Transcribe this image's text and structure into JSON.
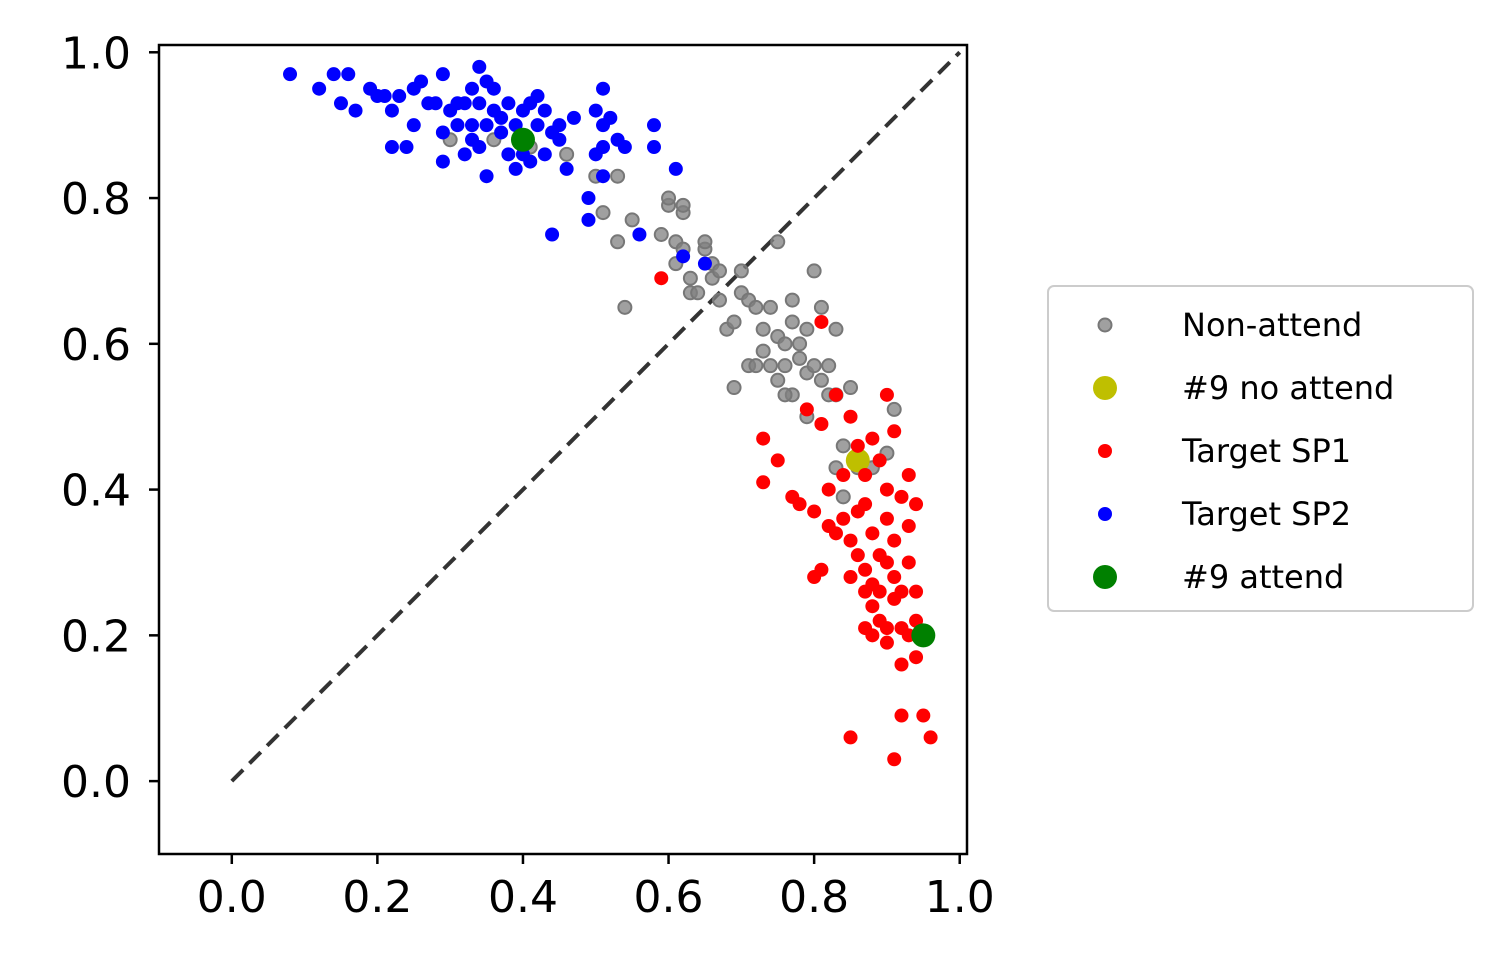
{
  "chart_data": {
    "type": "scatter",
    "title": "",
    "xlabel": "",
    "ylabel": "",
    "xlim": [
      -0.1,
      1.01
    ],
    "ylim": [
      -0.1,
      1.01
    ],
    "xticks": [
      "0.0",
      "0.2",
      "0.4",
      "0.6",
      "0.8",
      "1.0"
    ],
    "yticks": [
      "0.0",
      "0.2",
      "0.4",
      "0.6",
      "0.8",
      "1.0"
    ],
    "xtick_values": [
      0.0,
      0.2,
      0.4,
      0.6,
      0.8,
      1.0
    ],
    "ytick_values": [
      0.0,
      0.2,
      0.4,
      0.6,
      0.8,
      1.0
    ],
    "grid": false,
    "legend_position": "right",
    "reference_line": {
      "style": "dashed",
      "color": "#333333",
      "x": [
        0.0,
        1.0
      ],
      "y": [
        0.0,
        1.0
      ]
    },
    "series": [
      {
        "name": "Non-attend",
        "color": "#808080",
        "marker": "small-circle-translucent",
        "points": [
          [
            0.3,
            0.88
          ],
          [
            0.36,
            0.88
          ],
          [
            0.41,
            0.87
          ],
          [
            0.46,
            0.86
          ],
          [
            0.5,
            0.83
          ],
          [
            0.53,
            0.83
          ],
          [
            0.51,
            0.78
          ],
          [
            0.53,
            0.74
          ],
          [
            0.55,
            0.77
          ],
          [
            0.54,
            0.65
          ],
          [
            0.59,
            0.75
          ],
          [
            0.6,
            0.79
          ],
          [
            0.6,
            0.8
          ],
          [
            0.61,
            0.74
          ],
          [
            0.61,
            0.71
          ],
          [
            0.62,
            0.78
          ],
          [
            0.62,
            0.79
          ],
          [
            0.62,
            0.73
          ],
          [
            0.63,
            0.69
          ],
          [
            0.63,
            0.67
          ],
          [
            0.64,
            0.67
          ],
          [
            0.65,
            0.73
          ],
          [
            0.65,
            0.74
          ],
          [
            0.66,
            0.71
          ],
          [
            0.66,
            0.69
          ],
          [
            0.67,
            0.66
          ],
          [
            0.67,
            0.7
          ],
          [
            0.68,
            0.62
          ],
          [
            0.69,
            0.63
          ],
          [
            0.7,
            0.67
          ],
          [
            0.7,
            0.7
          ],
          [
            0.71,
            0.66
          ],
          [
            0.71,
            0.57
          ],
          [
            0.72,
            0.65
          ],
          [
            0.73,
            0.62
          ],
          [
            0.73,
            0.59
          ],
          [
            0.74,
            0.65
          ],
          [
            0.74,
            0.57
          ],
          [
            0.75,
            0.61
          ],
          [
            0.75,
            0.55
          ],
          [
            0.75,
            0.74
          ],
          [
            0.76,
            0.6
          ],
          [
            0.76,
            0.57
          ],
          [
            0.77,
            0.66
          ],
          [
            0.77,
            0.63
          ],
          [
            0.77,
            0.53
          ],
          [
            0.78,
            0.58
          ],
          [
            0.78,
            0.6
          ],
          [
            0.79,
            0.56
          ],
          [
            0.79,
            0.62
          ],
          [
            0.79,
            0.5
          ],
          [
            0.8,
            0.57
          ],
          [
            0.8,
            0.7
          ],
          [
            0.81,
            0.65
          ],
          [
            0.81,
            0.55
          ],
          [
            0.82,
            0.57
          ],
          [
            0.82,
            0.53
          ],
          [
            0.83,
            0.53
          ],
          [
            0.83,
            0.62
          ],
          [
            0.84,
            0.46
          ],
          [
            0.85,
            0.54
          ],
          [
            0.83,
            0.43
          ],
          [
            0.84,
            0.39
          ],
          [
            0.86,
            0.43
          ],
          [
            0.88,
            0.43
          ],
          [
            0.9,
            0.45
          ],
          [
            0.91,
            0.51
          ],
          [
            0.72,
            0.57
          ],
          [
            0.69,
            0.54
          ],
          [
            0.76,
            0.53
          ]
        ]
      },
      {
        "name": "#9 no attend",
        "color": "#bfbf00",
        "marker": "large-circle",
        "points": [
          [
            0.86,
            0.44
          ]
        ]
      },
      {
        "name": "Target SP1",
        "color": "#ff0000",
        "marker": "small-circle",
        "points": [
          [
            0.59,
            0.69
          ],
          [
            0.81,
            0.63
          ],
          [
            0.73,
            0.47
          ],
          [
            0.75,
            0.44
          ],
          [
            0.73,
            0.41
          ],
          [
            0.77,
            0.39
          ],
          [
            0.78,
            0.38
          ],
          [
            0.8,
            0.37
          ],
          [
            0.79,
            0.51
          ],
          [
            0.81,
            0.49
          ],
          [
            0.83,
            0.53
          ],
          [
            0.85,
            0.5
          ],
          [
            0.82,
            0.4
          ],
          [
            0.83,
            0.34
          ],
          [
            0.84,
            0.36
          ],
          [
            0.85,
            0.33
          ],
          [
            0.86,
            0.46
          ],
          [
            0.87,
            0.42
          ],
          [
            0.87,
            0.38
          ],
          [
            0.88,
            0.34
          ],
          [
            0.88,
            0.47
          ],
          [
            0.89,
            0.44
          ],
          [
            0.9,
            0.53
          ],
          [
            0.9,
            0.4
          ],
          [
            0.9,
            0.36
          ],
          [
            0.91,
            0.33
          ],
          [
            0.91,
            0.48
          ],
          [
            0.92,
            0.39
          ],
          [
            0.93,
            0.42
          ],
          [
            0.94,
            0.38
          ],
          [
            0.86,
            0.31
          ],
          [
            0.87,
            0.29
          ],
          [
            0.88,
            0.27
          ],
          [
            0.89,
            0.31
          ],
          [
            0.9,
            0.3
          ],
          [
            0.91,
            0.28
          ],
          [
            0.92,
            0.26
          ],
          [
            0.93,
            0.3
          ],
          [
            0.94,
            0.26
          ],
          [
            0.88,
            0.24
          ],
          [
            0.89,
            0.22
          ],
          [
            0.9,
            0.21
          ],
          [
            0.91,
            0.25
          ],
          [
            0.92,
            0.21
          ],
          [
            0.93,
            0.2
          ],
          [
            0.94,
            0.22
          ],
          [
            0.87,
            0.21
          ],
          [
            0.88,
            0.2
          ],
          [
            0.9,
            0.19
          ],
          [
            0.92,
            0.16
          ],
          [
            0.94,
            0.17
          ],
          [
            0.85,
            0.06
          ],
          [
            0.92,
            0.09
          ],
          [
            0.95,
            0.09
          ],
          [
            0.96,
            0.06
          ],
          [
            0.91,
            0.03
          ],
          [
            0.81,
            0.29
          ],
          [
            0.8,
            0.28
          ],
          [
            0.85,
            0.28
          ],
          [
            0.84,
            0.42
          ],
          [
            0.86,
            0.37
          ],
          [
            0.89,
            0.26
          ],
          [
            0.87,
            0.26
          ],
          [
            0.93,
            0.35
          ],
          [
            0.82,
            0.35
          ]
        ]
      },
      {
        "name": "Target SP2",
        "color": "#0000ff",
        "marker": "small-circle",
        "points": [
          [
            0.08,
            0.97
          ],
          [
            0.12,
            0.95
          ],
          [
            0.14,
            0.97
          ],
          [
            0.15,
            0.93
          ],
          [
            0.16,
            0.97
          ],
          [
            0.17,
            0.92
          ],
          [
            0.19,
            0.95
          ],
          [
            0.2,
            0.94
          ],
          [
            0.21,
            0.94
          ],
          [
            0.22,
            0.92
          ],
          [
            0.22,
            0.87
          ],
          [
            0.23,
            0.94
          ],
          [
            0.24,
            0.87
          ],
          [
            0.25,
            0.95
          ],
          [
            0.25,
            0.9
          ],
          [
            0.26,
            0.96
          ],
          [
            0.27,
            0.93
          ],
          [
            0.28,
            0.93
          ],
          [
            0.29,
            0.97
          ],
          [
            0.29,
            0.89
          ],
          [
            0.29,
            0.85
          ],
          [
            0.3,
            0.92
          ],
          [
            0.31,
            0.9
          ],
          [
            0.32,
            0.93
          ],
          [
            0.32,
            0.86
          ],
          [
            0.33,
            0.95
          ],
          [
            0.33,
            0.9
          ],
          [
            0.34,
            0.98
          ],
          [
            0.34,
            0.93
          ],
          [
            0.34,
            0.87
          ],
          [
            0.35,
            0.96
          ],
          [
            0.35,
            0.9
          ],
          [
            0.35,
            0.83
          ],
          [
            0.36,
            0.92
          ],
          [
            0.37,
            0.91
          ],
          [
            0.37,
            0.89
          ],
          [
            0.38,
            0.93
          ],
          [
            0.38,
            0.86
          ],
          [
            0.39,
            0.84
          ],
          [
            0.4,
            0.92
          ],
          [
            0.4,
            0.86
          ],
          [
            0.41,
            0.93
          ],
          [
            0.41,
            0.85
          ],
          [
            0.42,
            0.94
          ],
          [
            0.42,
            0.9
          ],
          [
            0.43,
            0.86
          ],
          [
            0.43,
            0.92
          ],
          [
            0.44,
            0.89
          ],
          [
            0.45,
            0.88
          ],
          [
            0.45,
            0.9
          ],
          [
            0.46,
            0.84
          ],
          [
            0.47,
            0.91
          ],
          [
            0.44,
            0.75
          ],
          [
            0.49,
            0.8
          ],
          [
            0.49,
            0.77
          ],
          [
            0.5,
            0.92
          ],
          [
            0.5,
            0.86
          ],
          [
            0.51,
            0.95
          ],
          [
            0.51,
            0.9
          ],
          [
            0.51,
            0.87
          ],
          [
            0.52,
            0.91
          ],
          [
            0.53,
            0.88
          ],
          [
            0.54,
            0.87
          ],
          [
            0.51,
            0.83
          ],
          [
            0.56,
            0.75
          ],
          [
            0.58,
            0.9
          ],
          [
            0.58,
            0.87
          ],
          [
            0.61,
            0.84
          ],
          [
            0.62,
            0.72
          ],
          [
            0.65,
            0.71
          ],
          [
            0.31,
            0.93
          ],
          [
            0.33,
            0.88
          ],
          [
            0.36,
            0.95
          ],
          [
            0.39,
            0.9
          ]
        ]
      },
      {
        "name": "#9 attend",
        "color": "#008000",
        "marker": "large-circle",
        "points": [
          [
            0.4,
            0.88
          ],
          [
            0.95,
            0.2
          ]
        ]
      }
    ]
  }
}
